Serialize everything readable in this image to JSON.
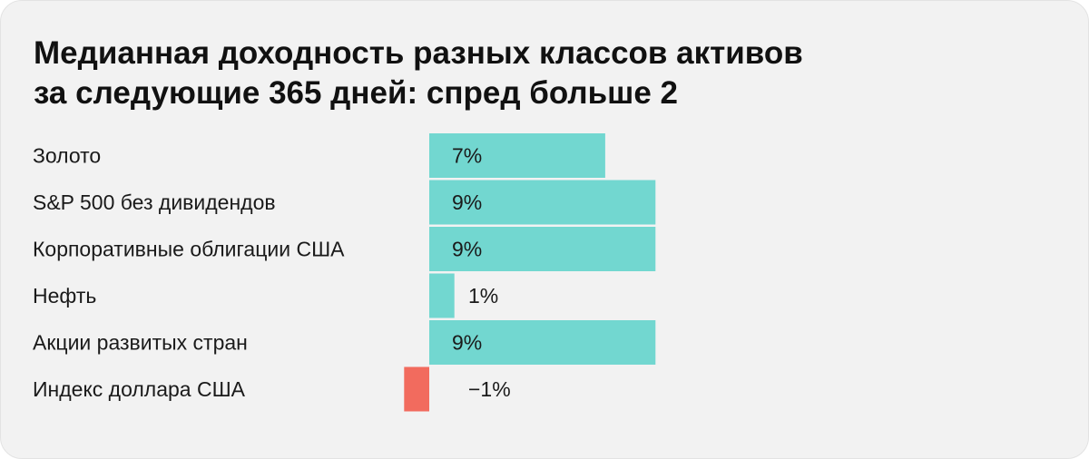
{
  "title": {
    "line1": "Медианная доходность разных классов активов",
    "line2": "за следующие 365 дней: спред больше 2"
  },
  "chart_data": {
    "type": "bar",
    "orientation": "horizontal",
    "categories": [
      "Золото",
      "S&P 500 без дивидендов",
      "Корпоративные облигации США",
      "Нефть",
      "Акции развитых стран",
      "Индекс доллара США"
    ],
    "values": [
      7,
      9,
      9,
      1,
      9,
      -1
    ],
    "value_labels": [
      "7%",
      "9%",
      "9%",
      "1%",
      "9%",
      "−1%"
    ],
    "unit": "%",
    "colors": {
      "positive": "#72d7d0",
      "negative": "#f26b5e"
    },
    "legend": "none",
    "grid": false
  }
}
